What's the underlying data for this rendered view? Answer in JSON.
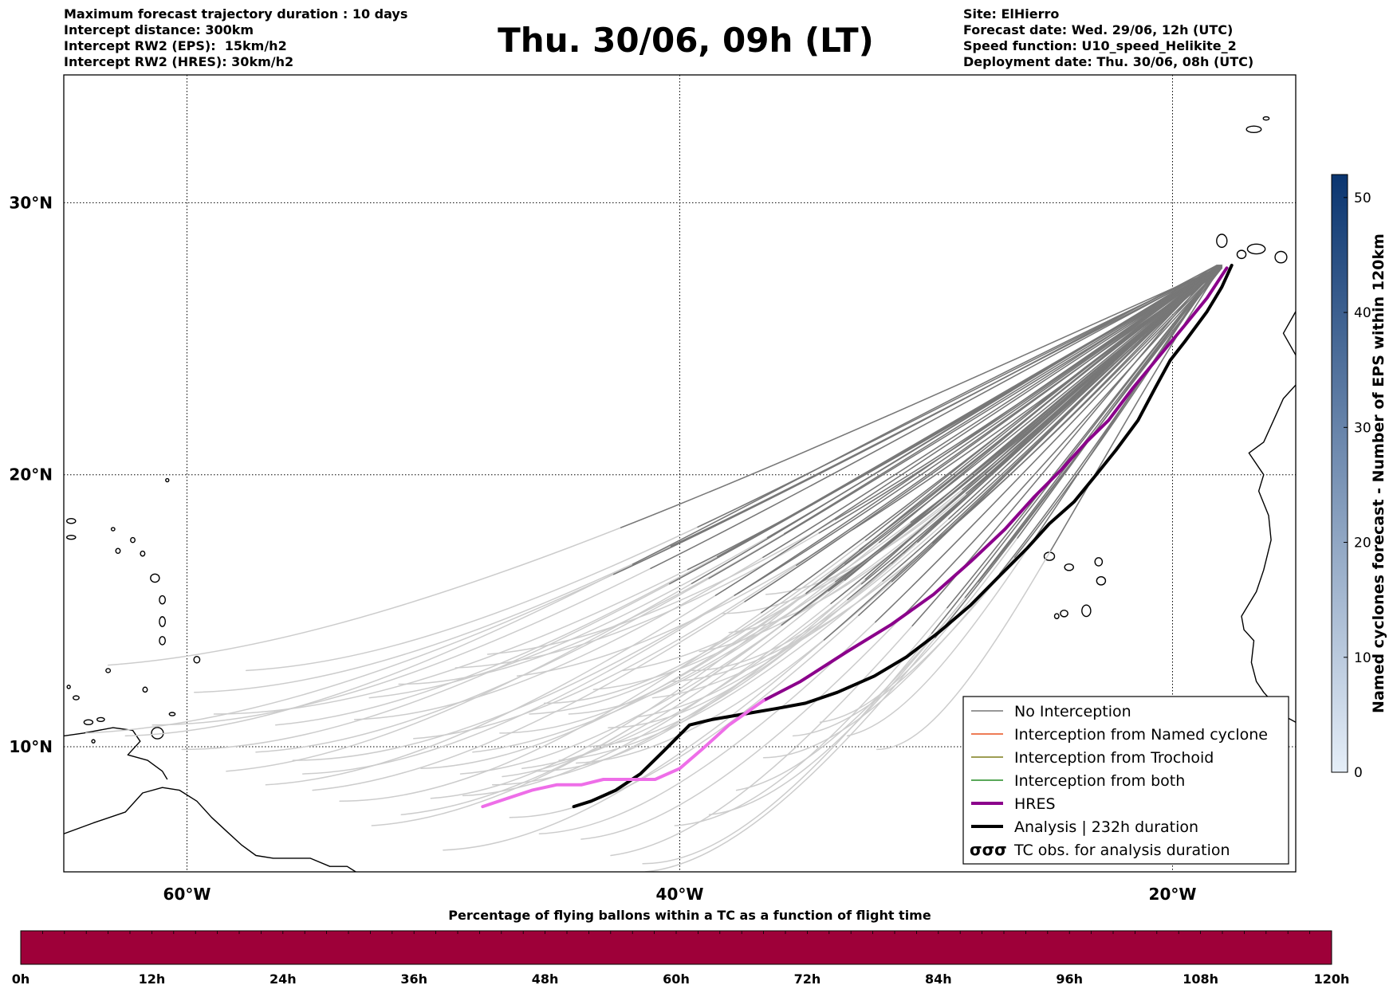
{
  "header": {
    "left_lines": [
      "Maximum forecast trajectory duration : 10 days",
      "Intercept distance: 300km",
      "Intercept RW2 (EPS):  15km/h2",
      "Intercept RW2 (HRES): 30km/h2"
    ],
    "title": "Thu. 30/06, 09h (LT)",
    "right_lines": [
      "Site: ElHierro",
      "Forecast date: Wed. 29/06, 12h (UTC)",
      "Speed function: U10_speed_Helikite_2",
      "Deployment date: Thu. 30/06, 08h (UTC)"
    ]
  },
  "map": {
    "lon_range": [
      -65,
      -15
    ],
    "lat_range": [
      5.4,
      34.7
    ],
    "lon_ticks": [
      {
        "value": -60,
        "label": "60°W"
      },
      {
        "value": -40,
        "label": "40°W"
      },
      {
        "value": -20,
        "label": "20°W"
      }
    ],
    "lat_ticks": [
      {
        "value": 10,
        "label": "10°N"
      },
      {
        "value": 20,
        "label": "20°N"
      },
      {
        "value": 30,
        "label": "30°N"
      }
    ],
    "grid": true,
    "site_location": [
      -17.9,
      27.7
    ],
    "colors": {
      "no_interception": "#777777",
      "no_interception_light": "#cccccc",
      "named_cyclone": "#e8501e",
      "trochoid": "#7d7d1a",
      "both": "#228b22",
      "hres_tail": "#8b008b",
      "hres_head": "#ee6ee8",
      "analysis": "#000000"
    },
    "hres_track": [
      [
        -17.8,
        27.6
      ],
      [
        -18.6,
        26.5
      ],
      [
        -19.5,
        25.5
      ],
      [
        -20.5,
        24.4
      ],
      [
        -21.6,
        23.2
      ],
      [
        -22.6,
        22.0
      ],
      [
        -23.5,
        21.2
      ],
      [
        -24.5,
        20.2
      ],
      [
        -25.6,
        19.2
      ],
      [
        -26.8,
        18.0
      ],
      [
        -28.2,
        16.8
      ],
      [
        -29.7,
        15.6
      ],
      [
        -31.4,
        14.5
      ],
      [
        -33.2,
        13.5
      ],
      [
        -35.1,
        12.4
      ],
      [
        -36.6,
        11.7
      ],
      [
        -38.0,
        10.8
      ],
      [
        -39.1,
        9.9
      ],
      [
        -40.0,
        9.2
      ],
      [
        -41.0,
        8.8
      ],
      [
        -42.2,
        8.8
      ],
      [
        -43.1,
        8.8
      ],
      [
        -44.0,
        8.6
      ],
      [
        -45.0,
        8.6
      ],
      [
        -46.0,
        8.4
      ],
      [
        -47.0,
        8.1
      ],
      [
        -48.0,
        7.8
      ]
    ],
    "hres_switch_index": 15,
    "analysis_track": [
      [
        -17.6,
        27.7
      ],
      [
        -18.0,
        26.9
      ],
      [
        -18.6,
        26.0
      ],
      [
        -19.5,
        24.9
      ],
      [
        -20.1,
        24.2
      ],
      [
        -20.7,
        23.2
      ],
      [
        -21.4,
        22.0
      ],
      [
        -22.3,
        20.9
      ],
      [
        -23.1,
        20.0
      ],
      [
        -24.0,
        19.0
      ],
      [
        -25.0,
        18.2
      ],
      [
        -25.9,
        17.3
      ],
      [
        -27.0,
        16.3
      ],
      [
        -28.2,
        15.2
      ],
      [
        -29.5,
        14.2
      ],
      [
        -30.8,
        13.3
      ],
      [
        -32.1,
        12.6
      ],
      [
        -33.6,
        12.0
      ],
      [
        -34.9,
        11.6
      ],
      [
        -36.1,
        11.4
      ],
      [
        -37.4,
        11.2
      ],
      [
        -38.7,
        11.0
      ],
      [
        -39.6,
        10.8
      ],
      [
        -40.7,
        9.8
      ],
      [
        -41.6,
        9.0
      ],
      [
        -42.6,
        8.4
      ],
      [
        -43.6,
        8.0
      ],
      [
        -44.3,
        7.8
      ]
    ],
    "ensemble_end_points": [
      [
        -38.3,
        14.9
      ],
      [
        -36.5,
        15.6
      ],
      [
        -38.0,
        14.2
      ],
      [
        -39.2,
        13.5
      ],
      [
        -39.5,
        12.8
      ],
      [
        -40.3,
        12.4
      ],
      [
        -41.1,
        11.8
      ],
      [
        -41.7,
        11.1
      ],
      [
        -42.9,
        10.7
      ],
      [
        -43.8,
        10.0
      ],
      [
        -44.9,
        9.5
      ],
      [
        -46.4,
        9.2
      ],
      [
        -47.6,
        8.6
      ],
      [
        -48.8,
        8.2
      ],
      [
        -50.1,
        8.1
      ],
      [
        -51.3,
        7.5
      ],
      [
        -53.8,
        8.0
      ],
      [
        -55.3,
        9.0
      ],
      [
        -57.2,
        9.8
      ],
      [
        -56.4,
        10.8
      ],
      [
        -58.9,
        11.2
      ],
      [
        -59.7,
        12.0
      ],
      [
        -57.6,
        12.8
      ],
      [
        -52.6,
        11.8
      ],
      [
        -51.4,
        12.3
      ],
      [
        -49.1,
        12.9
      ],
      [
        -47.8,
        13.4
      ],
      [
        -46.6,
        12.6
      ],
      [
        -45.5,
        11.6
      ],
      [
        -44.5,
        11.2
      ],
      [
        -43.5,
        12.1
      ],
      [
        -42.3,
        12.8
      ],
      [
        -46.9,
        7.4
      ],
      [
        -45.7,
        6.8
      ],
      [
        -44.0,
        6.6
      ],
      [
        -42.8,
        6.0
      ],
      [
        -41.5,
        5.7
      ],
      [
        -40.2,
        7.1
      ],
      [
        -38.8,
        7.5
      ],
      [
        -37.7,
        8.4
      ],
      [
        -36.6,
        9.6
      ],
      [
        -35.4,
        10.4
      ],
      [
        -34.3,
        10.9
      ],
      [
        -33.2,
        10.4
      ],
      [
        -32.0,
        9.9
      ],
      [
        -49.6,
        6.2
      ],
      [
        -52.5,
        7.1
      ],
      [
        -54.9,
        8.4
      ],
      [
        -60.2,
        9.9
      ],
      [
        -62.5,
        10.4
      ],
      [
        -64.1,
        10.5
      ],
      [
        -63.2,
        13.0
      ],
      [
        -61.4,
        10.8
      ],
      [
        -53.2,
        11.0
      ],
      [
        -50.8,
        10.3
      ],
      [
        -48.4,
        9.8
      ],
      [
        -47.3,
        10.5
      ],
      [
        -46.1,
        11.2
      ],
      [
        -56.8,
        8.6
      ],
      [
        -58.4,
        9.1
      ],
      [
        -55.7,
        9.5
      ],
      [
        -50.5,
        9.2
      ],
      [
        -48.9,
        9.0
      ],
      [
        -47.2,
        8.9
      ],
      [
        -45.8,
        9.1
      ],
      [
        -44.2,
        9.4
      ],
      [
        -41.4,
        5.4
      ]
    ],
    "tc_obs_glyph": "σσσ"
  },
  "legend": {
    "entries": [
      {
        "key": "no_interception",
        "label": "No Interception"
      },
      {
        "key": "named_cyclone",
        "label": "Interception from Named cyclone"
      },
      {
        "key": "trochoid",
        "label": "Interception from Trochoid"
      },
      {
        "key": "both",
        "label": "Interception from both"
      },
      {
        "key": "hres",
        "label": "HRES"
      },
      {
        "key": "analysis",
        "label": "Analysis | 232h duration"
      },
      {
        "key": "tc_obs",
        "label": "TC obs. for analysis duration"
      }
    ],
    "placement": "bottom-right"
  },
  "colorbar": {
    "label": "Named cyclones forecast - Number of EPS within 120km",
    "ticks": [
      0,
      10,
      20,
      30,
      40,
      50
    ],
    "max": 52,
    "color_low": "#e5eef8",
    "color_high": "#0a3570"
  },
  "bottom_bar": {
    "title": "Percentage of flying ballons within a TC as a function of flight time",
    "ticks": [
      "0h",
      "12h",
      "24h",
      "36h",
      "48h",
      "60h",
      "72h",
      "84h",
      "96h",
      "108h",
      "120h"
    ],
    "fill_color": "#9e0039"
  }
}
